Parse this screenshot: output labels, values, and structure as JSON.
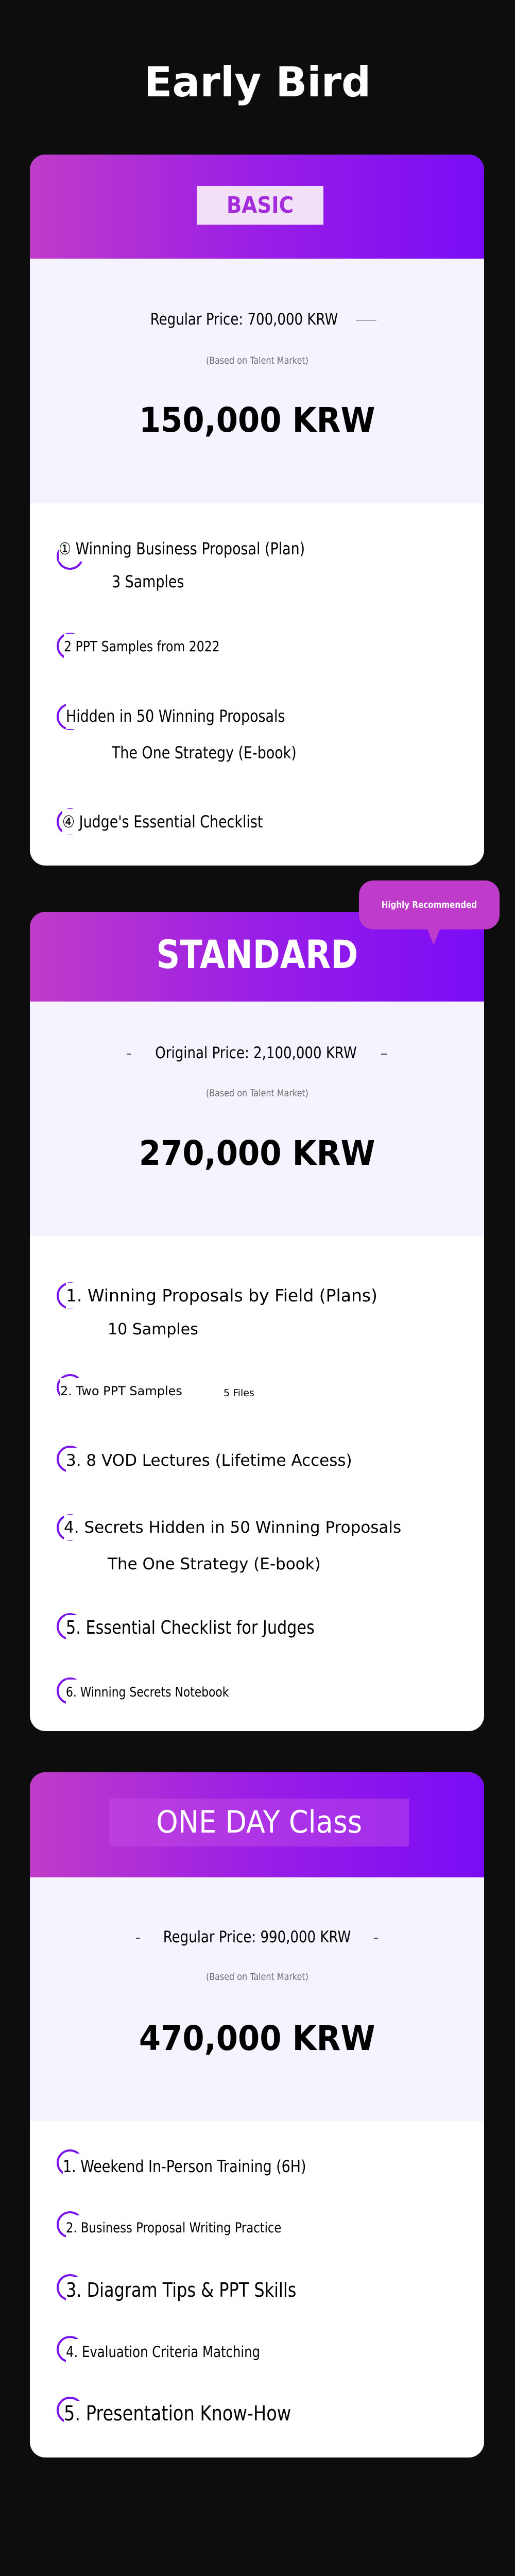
{
  "title": "Early Bird",
  "colors": {
    "background": "#0d0d0d",
    "gradient_start": "#c03cc8",
    "gradient_end": "#7a0cf5",
    "price_area": "#f7f3fe",
    "badge": "#bf3ccb",
    "bullet_ring": "#7a12ee"
  },
  "cards": [
    {
      "name": "BASIC",
      "original_price": "Regular Price: 700,000 KRW",
      "note": "(Based on Talent Market)",
      "price": "150,000 KRW",
      "features": [
        {
          "text": "① Winning Business Proposal (Plan)",
          "sub": "3 Samples"
        },
        {
          "text": "2 PPT Samples from 2022"
        },
        {
          "text": "Hidden in 50 Winning Proposals",
          "sub": "The One Strategy (E-book)"
        },
        {
          "text": "④ Judge's Essential Checklist"
        }
      ]
    },
    {
      "name": "STANDARD",
      "badge": "Highly Recommended",
      "original_price": "Original Price: 2,100,000 KRW",
      "note": "(Based on Talent Market)",
      "price": "270,000 KRW",
      "features": [
        {
          "text": "1. Winning Proposals by Field (Plans)",
          "sub": "10 Samples"
        },
        {
          "text": "2. Two PPT Samples",
          "extra": "5 Files"
        },
        {
          "text": "3. 8 VOD Lectures (Lifetime Access)"
        },
        {
          "text": "4. Secrets Hidden in 50 Winning Proposals",
          "sub": "The One Strategy (E-book)"
        },
        {
          "text": "5. Essential Checklist for Judges"
        },
        {
          "text": "6. Winning Secrets Notebook"
        }
      ]
    },
    {
      "name": "ONE DAY Class",
      "original_price": "Regular Price: 990,000 KRW",
      "note": "(Based on Talent Market)",
      "price": "470,000 KRW",
      "features": [
        {
          "text": "1. Weekend In-Person Training (6H)"
        },
        {
          "text": "2. Business Proposal Writing Practice"
        },
        {
          "text": "3. Diagram Tips & PPT Skills"
        },
        {
          "text": "4. Evaluation Criteria Matching"
        },
        {
          "text": "5. Presentation Know-How"
        }
      ]
    }
  ]
}
